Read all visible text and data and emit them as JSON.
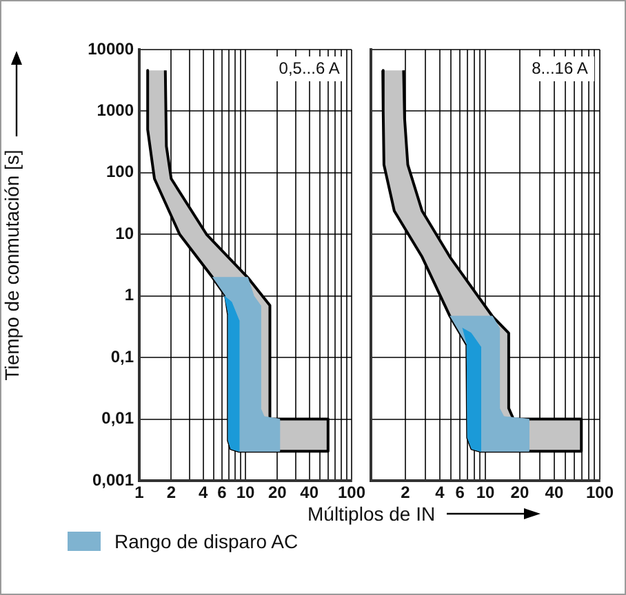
{
  "chart_data": [
    {
      "type": "area",
      "ylabel": "Tiempo de conmutación [s]",
      "xlabel": "Múltiplos de IN",
      "annotations": [
        "0,5...6 A"
      ],
      "legend": "bottom",
      "log": "xy",
      "grid": true,
      "xlim": [
        1,
        100
      ],
      "xticks": [
        1,
        2,
        {
          "value": 3,
          "label": null
        },
        4,
        {
          "value": 5,
          "label": null
        },
        6,
        {
          "value": 7,
          "label": null
        },
        {
          "value": 8,
          "label": null
        },
        {
          "value": 9,
          "label": null
        },
        10,
        20,
        {
          "value": 30,
          "label": null
        },
        40,
        {
          "value": 50,
          "label": null
        },
        {
          "value": 60,
          "label": null
        },
        {
          "value": 70,
          "label": null
        },
        {
          "value": 80,
          "label": null
        },
        {
          "value": 90,
          "label": null
        },
        100
      ],
      "ylim": [
        0.001,
        10000
      ],
      "yticks": [
        {
          "value": 0.001,
          "label": "0,001"
        },
        {
          "value": 0.01,
          "label": "0,01"
        },
        {
          "value": 0.1,
          "label": "0,1"
        },
        1,
        10,
        100,
        1000,
        10000
      ],
      "series": [
        {
          "color": "#c4c4c4",
          "x": [
            1.2,
            1.2,
            1.39,
            2.4,
            4.9,
            6.5,
            6.9,
            6.9,
            7.3,
            8.7,
            60,
            60,
            17,
            17,
            10.5,
            4.3,
            2.0,
            1.8,
            1.76
          ],
          "values": [
            4600,
            500,
            80,
            10,
            2,
            1,
            0.5,
            0.0045,
            0.0033,
            0.003,
            0.003,
            0.01,
            0.01,
            0.7,
            2,
            10,
            80,
            270,
            4600
          ]
        },
        {
          "name": "Rango de disparo AC",
          "color": "#7fb3d0",
          "x": [
            4.9,
            10.5,
            12,
            13.9,
            13.9,
            15,
            21,
            21,
            8.7,
            7.3,
            6.9,
            6.9,
            6.5
          ],
          "values": [
            2,
            2,
            1,
            0.7,
            0.015,
            0.011,
            0.01,
            0.003,
            0.003,
            0.0033,
            0.0045,
            0.5,
            1
          ]
        },
        {
          "color": "#1b9ad8",
          "x": [
            6.3,
            7.4,
            8.7,
            8.7,
            7.3,
            6.9,
            6.9
          ],
          "values": [
            1,
            0.8,
            0.4,
            0.003,
            0.0033,
            0.0045,
            0.5
          ]
        }
      ]
    },
    {
      "type": "area",
      "annotations": [
        "8...16 A"
      ],
      "log": "xy",
      "grid": true,
      "tick_labels": "x",
      "xlim": [
        1,
        100
      ],
      "xticks": [
        {
          "value": 1,
          "label": null
        },
        2,
        {
          "value": 3,
          "label": null
        },
        4,
        {
          "value": 5,
          "label": null
        },
        6,
        {
          "value": 7,
          "label": null
        },
        {
          "value": 8,
          "label": null
        },
        {
          "value": 9,
          "label": null
        },
        10,
        20,
        {
          "value": 30,
          "label": null
        },
        40,
        {
          "value": 50,
          "label": null
        },
        {
          "value": 60,
          "label": null
        },
        {
          "value": 70,
          "label": null
        },
        {
          "value": 80,
          "label": null
        },
        {
          "value": 90,
          "label": null
        },
        100
      ],
      "ylim": [
        0.001,
        10000
      ],
      "yticks": [
        0.001,
        0.01,
        0.1,
        1,
        10,
        100,
        1000,
        10000
      ],
      "series": [
        {
          "color": "#c4c4c4",
          "x": [
            1.27,
            1.28,
            1.3,
            1.6,
            2.8,
            4.9,
            6.9,
            7.0,
            7.6,
            9.1,
            69,
            69,
            17.6,
            16,
            16,
            11.5,
            4.9,
            2.8,
            2.1,
            1.97,
            1.93
          ],
          "values": [
            4600,
            1000,
            135,
            24,
            4.3,
            0.47,
            0.16,
            0.005,
            0.0033,
            0.003,
            0.003,
            0.01,
            0.01,
            0.015,
            0.25,
            0.47,
            4.3,
            24,
            135,
            760,
            4600
          ]
        },
        {
          "color": "#7fb3d0",
          "x": [
            4.9,
            11.5,
            13.3,
            13.3,
            14.5,
            24,
            24,
            9.1,
            7.6,
            7.0,
            6.9
          ],
          "values": [
            0.47,
            0.47,
            0.3,
            0.015,
            0.011,
            0.01,
            0.003,
            0.003,
            0.0033,
            0.005,
            0.16
          ]
        },
        {
          "color": "#1b9ad8",
          "x": [
            6.3,
            7.5,
            9.1,
            9.1,
            7.6,
            7.0,
            6.9
          ],
          "values": [
            0.3,
            0.25,
            0.15,
            0.003,
            0.0033,
            0.005,
            0.16
          ]
        }
      ]
    }
  ]
}
